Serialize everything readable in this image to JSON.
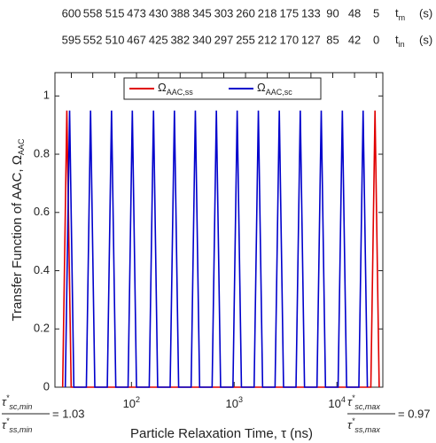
{
  "chart_data": {
    "type": "line",
    "ylabel": "Transfer Function of AAC, Ω",
    "ylabel_sub": "AAC",
    "xlabel": "Particle Relaxation Time, τ (ns)",
    "xlim": [
      18,
      28000
    ],
    "log_x": true,
    "xticks": [
      {
        "value": 100,
        "label": "10",
        "sup": "2"
      },
      {
        "value": 1000,
        "label": "10",
        "sup": "3"
      },
      {
        "value": 10000,
        "label": "10",
        "sup": "4"
      }
    ],
    "ylim": [
      0,
      1.08
    ],
    "yticks": [
      0,
      0.2,
      0.4,
      0.6,
      0.8,
      1
    ],
    "top_axis": {
      "positions": [
        26,
        42,
        69,
        112,
        183,
        298,
        486,
        792,
        1290,
        2100,
        3430,
        5590,
        9110,
        14850,
        24200
      ],
      "t_m": [
        600,
        558,
        515,
        473,
        430,
        388,
        345,
        303,
        260,
        218,
        175,
        133,
        90,
        48,
        5
      ],
      "t_in": [
        595,
        552,
        510,
        467,
        425,
        382,
        340,
        297,
        255,
        212,
        170,
        127,
        85,
        42,
        0
      ],
      "t_m_label": {
        "symbol": "t",
        "sub": "m",
        "unit": "(s)"
      },
      "t_in_label": {
        "symbol": "t",
        "sub": "in",
        "unit": "(s)"
      }
    },
    "legend": "top",
    "series": [
      {
        "name": "Ω",
        "subscript": "AAC,ss",
        "color": "#e00000",
        "x": [
          21.4,
          23.5,
          25.9,
          21400,
          23500,
          25800
        ],
        "values": [
          0,
          0.95,
          0,
          0,
          0.95,
          0
        ]
      },
      {
        "name": "Ω",
        "subscript": "AAC,sc",
        "color": "#0000cc",
        "x": [
          22.7,
          25,
          27.5,
          36.4,
          40,
          44,
          58.2,
          64,
          70.4,
          92.7,
          102,
          112,
          149,
          164,
          180,
          238,
          262,
          288,
          381,
          419,
          461,
          610,
          671,
          738,
          973,
          1070,
          1177,
          1564,
          1720,
          1892,
          2500,
          2750,
          3025,
          4000,
          4400,
          4840,
          6400,
          7040,
          7744,
          10270,
          11300,
          12430,
          16360,
          18000,
          19800
        ],
        "values": [
          0,
          0.95,
          0,
          0,
          0.95,
          0,
          0,
          0.95,
          0,
          0,
          0.95,
          0,
          0,
          0.95,
          0,
          0,
          0.95,
          0,
          0,
          0.95,
          0,
          0,
          0.95,
          0,
          0,
          0.95,
          0,
          0,
          0.95,
          0,
          0,
          0.95,
          0,
          0,
          0.95,
          0,
          0,
          0.95,
          0,
          0,
          0.95,
          0,
          0,
          0.95,
          0
        ]
      }
    ],
    "annotations": [
      {
        "symbol": "τ",
        "sup": "*",
        "num_sub": "sc,min",
        "den_sub": "ss,min",
        "text": "= 1.03"
      },
      {
        "symbol": "τ",
        "sup": "*",
        "num_sub": "sc,max",
        "den_sub": "ss,max",
        "text": "= 0.97"
      }
    ]
  }
}
